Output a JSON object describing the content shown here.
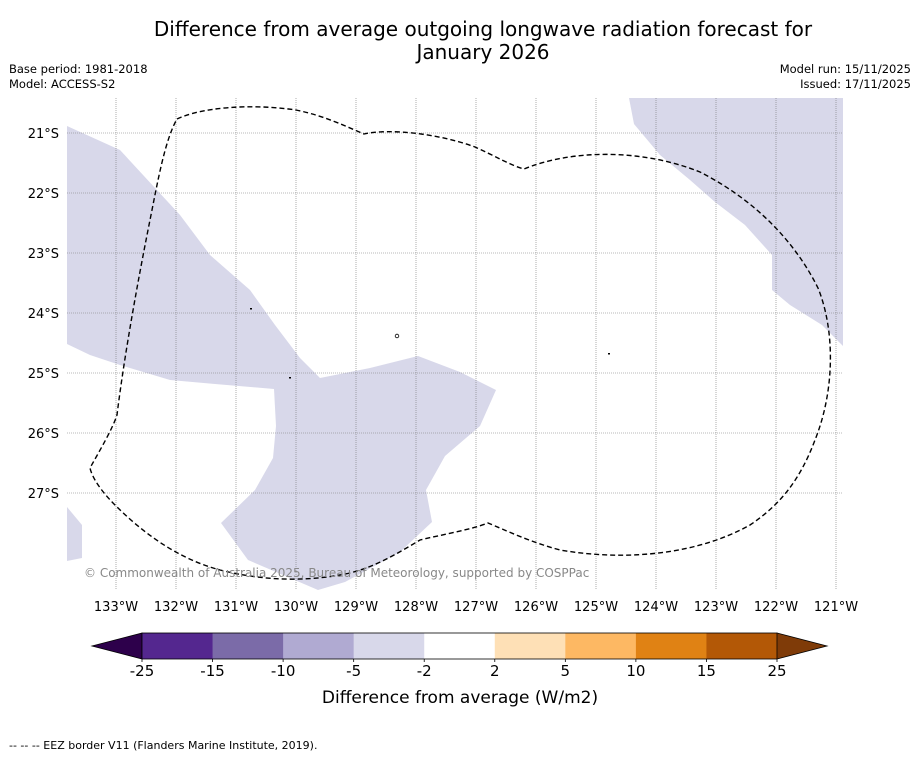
{
  "title_line1": "Difference from average outgoing longwave radiation forecast for",
  "title_line2": "January 2026",
  "base_period": "Base period: 1981-2018",
  "model": "Model: ACCESS-S2",
  "model_run": "Model run: 15/11/2025",
  "issued": "Issued: 17/11/2025",
  "copyright": "© Commonwealth of Australia 2025, Bureau of Meteorology, supported by COSPPac",
  "lat_labels": [
    "21°S",
    "22°S",
    "23°S",
    "24°S",
    "25°S",
    "26°S",
    "27°S"
  ],
  "lon_labels": [
    "133°W",
    "132°W",
    "131°W",
    "130°W",
    "129°W",
    "128°W",
    "127°W",
    "126°W",
    "125°W",
    "124°W",
    "123°W",
    "122°W",
    "121°W"
  ],
  "colorbar": {
    "label": "Difference from average (W/m2)",
    "ticks": [
      "-25",
      "-15",
      "-10",
      "-5",
      "-2",
      "2",
      "5",
      "10",
      "15",
      "25"
    ],
    "colors": [
      "#54278f",
      "#7b6ba8",
      "#b0aad2",
      "#d8d8ea",
      "#ffffff",
      "#fee0b6",
      "#fdb863",
      "#e08214",
      "#b35806"
    ],
    "under_color": "#2d004b",
    "over_color": "#7f3b08",
    "anomaly_fill": "#d8d8ea"
  },
  "footer": "--  --  -- EEZ border V11 (Flanders Marine Institute, 2019)."
}
